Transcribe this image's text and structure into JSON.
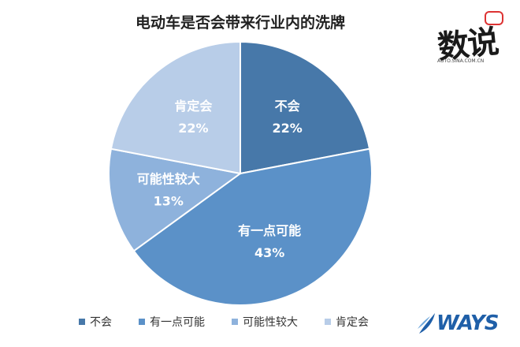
{
  "chart_data": {
    "type": "pie",
    "title": "电动车是否会带来行业内的洗牌",
    "slices": [
      {
        "label": "不会",
        "value": 22,
        "display": "22%",
        "color": "#4778a9"
      },
      {
        "label": "有一点可能",
        "value": 43,
        "display": "43%",
        "color": "#5b91c8"
      },
      {
        "label": "可能性较大",
        "value": 13,
        "display": "13%",
        "color": "#8eb2dc"
      },
      {
        "label": "肯定会",
        "value": 22,
        "display": "22%",
        "color": "#b8cde8"
      }
    ],
    "legend_position": "bottom"
  },
  "logos": {
    "stamp_text": "数说",
    "stamp_sub": "AUTO.SINA.COM.CN",
    "ways_text": "WAYS"
  }
}
